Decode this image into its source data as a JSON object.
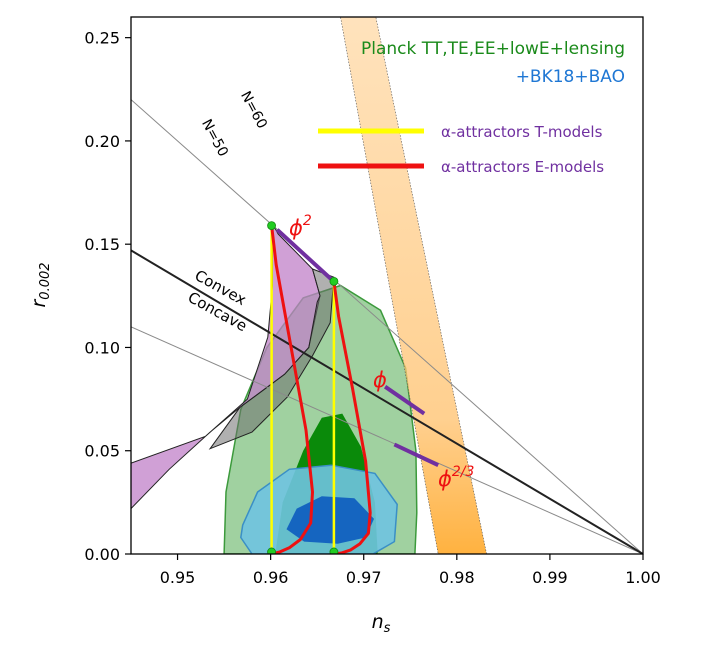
{
  "chart_data": {
    "type": "scatter",
    "xlabel": "n",
    "xlabel_sub": "s",
    "ylabel": "r",
    "ylabel_sub": "0.002",
    "xlim": [
      0.945,
      1.0
    ],
    "ylim": [
      0.0,
      0.26
    ],
    "x_ticks": [
      0.95,
      0.96,
      0.97,
      0.98,
      0.99,
      1.0
    ],
    "x_tick_labels": [
      "0.95",
      "0.96",
      "0.97",
      "0.98",
      "0.99",
      "1.00"
    ],
    "y_ticks": [
      0.0,
      0.05,
      0.1,
      0.15,
      0.2,
      0.25
    ],
    "y_tick_labels": [
      "0.00",
      "0.05",
      "0.10",
      "0.15",
      "0.20",
      "0.25"
    ],
    "grid": false,
    "colors": {
      "planck_text": "#1a8a1a",
      "bao_text": "#1f77d4",
      "green_outer": "#8fc98f",
      "green_inner": "#0a8a0a",
      "blue_outer": "#6fc3e0",
      "blue_inner": "#1565c0",
      "band": "#ffc98a",
      "band_end": "#ff9f00",
      "purple_region": "#c080c8",
      "grey_region": "#6f6f6f",
      "t_models": "#ffff00",
      "e_models": "#ee1111",
      "monomial_segments": "#7030a0",
      "markers": "#22cc22",
      "red_label": "#ee1111"
    },
    "legend": {
      "dataset_line1": "Planck TT,TE,EE+lowE+lensing",
      "dataset_line2": "+BK18+BAO",
      "entries": [
        {
          "label": "α-attractors T-models",
          "color": "#ffff00"
        },
        {
          "label": "α-attractors E-models",
          "color": "#ee1111"
        }
      ],
      "placement": "top-right"
    },
    "annotations": {
      "n60": "N=60",
      "n50": "N=50",
      "convex": "Convex",
      "concave": "Concave",
      "phi2": "ϕ",
      "phi2_exp": "2",
      "phi1": "ϕ",
      "phi23": "ϕ",
      "phi23_exp": "2/3"
    },
    "regions": {
      "green_outer": [
        [
          0.955,
          0.0
        ],
        [
          0.9552,
          0.03
        ],
        [
          0.9568,
          0.07
        ],
        [
          0.9596,
          0.1
        ],
        [
          0.9635,
          0.124
        ],
        [
          0.9675,
          0.13
        ],
        [
          0.9718,
          0.118
        ],
        [
          0.9745,
          0.09
        ],
        [
          0.9756,
          0.05
        ],
        [
          0.9757,
          0.02
        ],
        [
          0.9755,
          0.0
        ]
      ],
      "green_inner": [
        [
          0.9605,
          0.0
        ],
        [
          0.9613,
          0.025
        ],
        [
          0.9635,
          0.05
        ],
        [
          0.9655,
          0.066
        ],
        [
          0.9677,
          0.068
        ],
        [
          0.9697,
          0.052
        ],
        [
          0.9712,
          0.025
        ],
        [
          0.9715,
          0.0
        ]
      ],
      "blue_outer": [
        [
          0.957,
          0.014
        ],
        [
          0.9586,
          0.03
        ],
        [
          0.962,
          0.041
        ],
        [
          0.9665,
          0.043
        ],
        [
          0.9712,
          0.039
        ],
        [
          0.9736,
          0.024
        ],
        [
          0.9733,
          0.006
        ],
        [
          0.971,
          0.0
        ],
        [
          0.958,
          0.0
        ],
        [
          0.9568,
          0.008
        ]
      ],
      "blue_inner": [
        [
          0.9617,
          0.012
        ],
        [
          0.9628,
          0.022
        ],
        [
          0.9655,
          0.028
        ],
        [
          0.969,
          0.027
        ],
        [
          0.9711,
          0.017
        ],
        [
          0.9702,
          0.008
        ],
        [
          0.9672,
          0.005
        ],
        [
          0.9636,
          0.006
        ]
      ],
      "purple": [
        [
          0.945,
          0.044
        ],
        [
          0.953,
          0.057
        ],
        [
          0.9575,
          0.075
        ],
        [
          0.9597,
          0.105
        ],
        [
          0.9602,
          0.13
        ],
        [
          0.9602,
          0.16
        ],
        [
          0.9608,
          0.155
        ],
        [
          0.9645,
          0.138
        ],
        [
          0.9653,
          0.125
        ],
        [
          0.9641,
          0.1
        ],
        [
          0.9615,
          0.087
        ],
        [
          0.9567,
          0.071
        ],
        [
          0.9535,
          0.059
        ],
        [
          0.9491,
          0.041
        ],
        [
          0.945,
          0.022
        ]
      ],
      "grey": [
        [
          0.9567,
          0.071
        ],
        [
          0.9615,
          0.087
        ],
        [
          0.9641,
          0.1
        ],
        [
          0.965,
          0.122
        ],
        [
          0.9653,
          0.125
        ],
        [
          0.9645,
          0.138
        ],
        [
          0.9668,
          0.134
        ],
        [
          0.9664,
          0.112
        ],
        [
          0.9645,
          0.096
        ],
        [
          0.9618,
          0.076
        ],
        [
          0.958,
          0.059
        ],
        [
          0.9535,
          0.051
        ]
      ],
      "band": [
        [
          0.9675,
          0.26
        ],
        [
          0.9713,
          0.26
        ],
        [
          0.9832,
          0.0
        ],
        [
          0.978,
          0.0
        ]
      ]
    },
    "lines": {
      "convex_concave": [
        [
          0.945,
          0.147
        ],
        [
          1.0,
          0.0
        ]
      ],
      "thin_upper": [
        [
          0.945,
          0.22
        ],
        [
          1.0,
          0.0
        ]
      ],
      "thin_lower": [
        [
          0.945,
          0.11
        ],
        [
          1.0,
          0.0
        ]
      ]
    },
    "series": [
      {
        "name": "α-attractors T-models",
        "kind": "line",
        "x": [
          0.9601,
          0.9601
        ],
        "y": [
          0.0,
          0.159
        ]
      },
      {
        "name": "α-attractors T-models",
        "kind": "line",
        "x": [
          0.9668,
          0.9668
        ],
        "y": [
          0.0,
          0.132
        ]
      },
      {
        "name": "α-attractors E-models",
        "kind": "line",
        "x": [
          0.9601,
          0.9606,
          0.9622,
          0.9638,
          0.9645,
          0.9643,
          0.9632,
          0.962,
          0.961,
          0.9601
        ],
        "y": [
          0.159,
          0.14,
          0.1,
          0.06,
          0.03,
          0.015,
          0.007,
          0.003,
          0.001,
          0.0
        ]
      },
      {
        "name": "α-attractors E-models",
        "kind": "line",
        "x": [
          0.9668,
          0.9673,
          0.9688,
          0.9702,
          0.9707,
          0.9705,
          0.9696,
          0.9686,
          0.9676,
          0.9668
        ],
        "y": [
          0.132,
          0.115,
          0.08,
          0.045,
          0.02,
          0.01,
          0.005,
          0.002,
          0.0005,
          0.0
        ]
      },
      {
        "name": "ϕ²",
        "kind": "segment",
        "x": [
          0.9607,
          0.967
        ],
        "y": [
          0.157,
          0.131
        ]
      },
      {
        "name": "ϕ",
        "kind": "segment",
        "x": [
          0.9723,
          0.9765
        ],
        "y": [
          0.081,
          0.068
        ]
      },
      {
        "name": "ϕ^(2/3)",
        "kind": "segment",
        "x": [
          0.9733,
          0.978
        ],
        "y": [
          0.053,
          0.043
        ]
      },
      {
        "name": "markers",
        "kind": "points",
        "x": [
          0.9601,
          0.9668,
          0.9601,
          0.9668
        ],
        "y": [
          0.159,
          0.132,
          0.001,
          0.001
        ]
      }
    ]
  }
}
